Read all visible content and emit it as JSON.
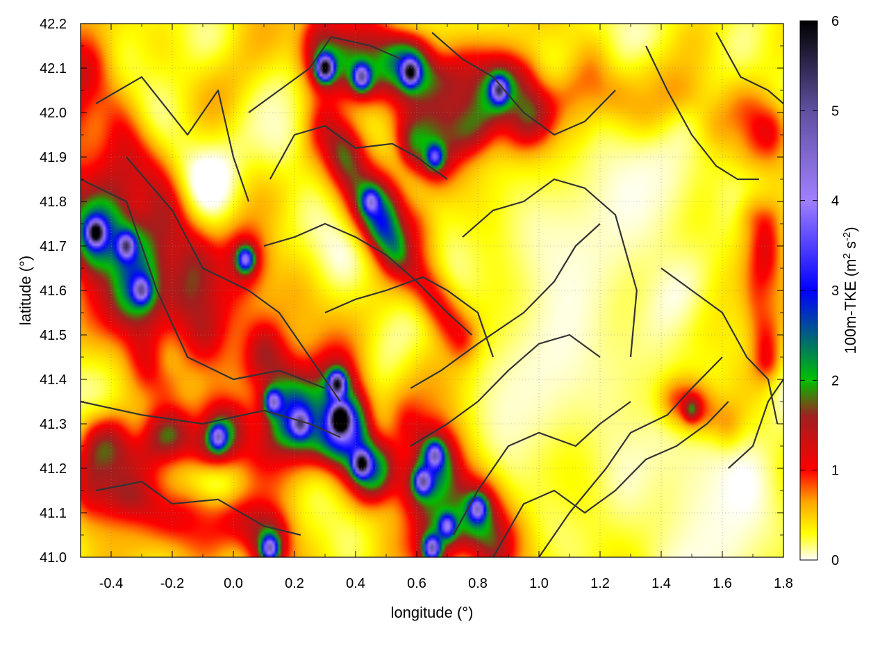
{
  "chart_data": {
    "type": "heatmap",
    "title": "",
    "xlabel": "longitude (°)",
    "ylabel": "latitude (°)",
    "xlim": [
      -0.5,
      1.8
    ],
    "ylim": [
      41.0,
      42.2
    ],
    "x_ticks": [
      "-0.4",
      "-0.2",
      "0.0",
      "0.2",
      "0.4",
      "0.6",
      "0.8",
      "1.0",
      "1.2",
      "1.4",
      "1.6",
      "1.8"
    ],
    "x_tick_values": [
      -0.4,
      -0.2,
      0.0,
      0.2,
      0.4,
      0.6,
      0.8,
      1.0,
      1.2,
      1.4,
      1.6,
      1.8
    ],
    "y_ticks": [
      "41.0",
      "41.1",
      "41.2",
      "41.3",
      "41.4",
      "41.5",
      "41.6",
      "41.7",
      "41.8",
      "41.9",
      "42.0",
      "42.1",
      "42.2"
    ],
    "y_tick_values": [
      41.0,
      41.1,
      41.2,
      41.3,
      41.4,
      41.5,
      41.6,
      41.7,
      41.8,
      41.9,
      42.0,
      42.1,
      42.2
    ],
    "colorbar": {
      "label_main": "100m-TKE (m",
      "label_sup1": "2",
      "label_mid": " s",
      "label_sup2": "-2",
      "label_end": ")",
      "range": [
        0,
        6
      ],
      "ticks": [
        "0",
        "1",
        "2",
        "3",
        "4",
        "5",
        "6"
      ],
      "tick_values": [
        0,
        1,
        2,
        3,
        4,
        5,
        6
      ],
      "stops": [
        {
          "v": 0.0,
          "color": "#ffffff"
        },
        {
          "v": 0.3,
          "color": "#ffff00"
        },
        {
          "v": 0.65,
          "color": "#ffa500"
        },
        {
          "v": 1.0,
          "color": "#ff0000"
        },
        {
          "v": 1.6,
          "color": "#a02020"
        },
        {
          "v": 2.0,
          "color": "#00c000"
        },
        {
          "v": 3.0,
          "color": "#0000ff"
        },
        {
          "v": 4.0,
          "color": "#a080ff"
        },
        {
          "v": 5.0,
          "color": "#6050a0"
        },
        {
          "v": 6.0,
          "color": "#000000"
        }
      ]
    },
    "field": {
      "description_free": true,
      "hotspots": [
        {
          "lon": -0.45,
          "lat": 41.73,
          "tke": 4.2
        },
        {
          "lon": -0.35,
          "lat": 41.7,
          "tke": 3.0
        },
        {
          "lon": -0.3,
          "lat": 41.6,
          "tke": 2.6
        },
        {
          "lon": 0.04,
          "lat": 41.67,
          "tke": 2.8
        },
        {
          "lon": 0.3,
          "lat": 42.1,
          "tke": 5.0
        },
        {
          "lon": 0.42,
          "lat": 42.08,
          "tke": 3.2
        },
        {
          "lon": 0.58,
          "lat": 42.09,
          "tke": 4.0
        },
        {
          "lon": 0.87,
          "lat": 42.05,
          "tke": 3.6
        },
        {
          "lon": 0.35,
          "lat": 41.31,
          "tke": 6.0
        },
        {
          "lon": 0.34,
          "lat": 41.39,
          "tke": 4.0
        },
        {
          "lon": 0.42,
          "lat": 41.21,
          "tke": 4.2
        },
        {
          "lon": 0.13,
          "lat": 41.35,
          "tke": 2.8
        },
        {
          "lon": 0.22,
          "lat": 41.3,
          "tke": 2.4
        },
        {
          "lon": 0.62,
          "lat": 41.17,
          "tke": 3.0
        },
        {
          "lon": 0.66,
          "lat": 41.23,
          "tke": 2.8
        },
        {
          "lon": 0.8,
          "lat": 41.11,
          "tke": 3.0
        },
        {
          "lon": 0.7,
          "lat": 41.07,
          "tke": 2.4
        },
        {
          "lon": -0.05,
          "lat": 41.27,
          "tke": 2.6
        },
        {
          "lon": 0.65,
          "lat": 41.02,
          "tke": 3.4
        },
        {
          "lon": 0.12,
          "lat": 41.02,
          "tke": 3.0
        },
        {
          "lon": 0.66,
          "lat": 41.9,
          "tke": 2.2
        },
        {
          "lon": 0.45,
          "lat": 41.8,
          "tke": 2.0
        },
        {
          "lon": 1.5,
          "lat": 41.33,
          "tke": 2.0
        }
      ],
      "ridges": [
        {
          "lon0": -0.5,
          "lat0": 42.05,
          "lon1": -0.1,
          "lat1": 41.55,
          "tke": 1.3,
          "w": 0.08
        },
        {
          "lon0": -0.5,
          "lat0": 41.8,
          "lon1": -0.25,
          "lat1": 41.45,
          "tke": 1.4,
          "w": 0.06
        },
        {
          "lon0": 0.3,
          "lat0": 41.95,
          "lon1": 0.55,
          "lat1": 41.72,
          "tke": 1.6,
          "w": 0.05
        },
        {
          "lon0": 0.5,
          "lat0": 41.75,
          "lon1": 0.75,
          "lat1": 41.5,
          "tke": 1.0,
          "w": 0.04
        },
        {
          "lon0": -0.45,
          "lat0": 41.25,
          "lon1": 0.4,
          "lat1": 41.3,
          "tke": 1.2,
          "w": 0.05
        },
        {
          "lon0": 0.1,
          "lat0": 41.45,
          "lon1": 0.45,
          "lat1": 41.2,
          "tke": 1.5,
          "w": 0.05
        },
        {
          "lon0": 0.3,
          "lat0": 42.15,
          "lon1": 0.95,
          "lat1": 42.05,
          "tke": 1.5,
          "w": 0.05
        },
        {
          "lon0": 0.6,
          "lat0": 41.95,
          "lon1": 1.1,
          "lat1": 42.0,
          "tke": 1.3,
          "w": 0.05
        },
        {
          "lon0": 1.2,
          "lat0": 42.05,
          "lon1": 1.75,
          "lat1": 41.95,
          "tke": 1.0,
          "w": 0.06
        },
        {
          "lon0": 1.72,
          "lat0": 41.75,
          "lon1": 1.75,
          "lat1": 41.45,
          "tke": 1.1,
          "w": 0.04
        },
        {
          "lon0": 0.55,
          "lat0": 41.25,
          "lon1": 0.85,
          "lat1": 41.05,
          "tke": 1.3,
          "w": 0.06
        },
        {
          "lon0": -0.45,
          "lat0": 41.15,
          "lon1": 0.1,
          "lat1": 41.05,
          "tke": 1.0,
          "w": 0.05
        },
        {
          "lon0": 1.45,
          "lat0": 41.35,
          "lon1": 1.6,
          "lat1": 41.3,
          "tke": 1.1,
          "w": 0.04
        }
      ],
      "calm_regions": [
        {
          "lon": 1.15,
          "lat": 41.7,
          "r": 0.3
        },
        {
          "lon": 1.0,
          "lat": 41.35,
          "r": 0.25
        },
        {
          "lon": 1.5,
          "lat": 41.15,
          "r": 0.25
        },
        {
          "lon": 1.4,
          "lat": 41.85,
          "r": 0.2
        },
        {
          "lon": 0.15,
          "lat": 41.95,
          "r": 0.12
        },
        {
          "lon": 1.6,
          "lat": 41.02,
          "r": 0.2
        }
      ]
    },
    "contours": [
      [
        [
          -0.5,
          41.85
        ],
        [
          -0.35,
          41.8
        ],
        [
          -0.25,
          41.6
        ],
        [
          -0.15,
          41.45
        ],
        [
          0.0,
          41.4
        ],
        [
          0.15,
          41.42
        ],
        [
          0.3,
          41.38
        ]
      ],
      [
        [
          -0.5,
          41.35
        ],
        [
          -0.3,
          41.32
        ],
        [
          -0.1,
          41.3
        ],
        [
          0.1,
          41.33
        ],
        [
          0.25,
          41.3
        ],
        [
          0.35,
          41.27
        ]
      ],
      [
        [
          -0.45,
          41.15
        ],
        [
          -0.3,
          41.17
        ],
        [
          -0.2,
          41.12
        ],
        [
          -0.05,
          41.13
        ],
        [
          0.1,
          41.07
        ],
        [
          0.22,
          41.05
        ]
      ],
      [
        [
          -0.45,
          42.02
        ],
        [
          -0.3,
          42.08
        ],
        [
          -0.15,
          41.95
        ],
        [
          -0.05,
          42.05
        ],
        [
          0.0,
          41.9
        ],
        [
          0.05,
          41.8
        ]
      ],
      [
        [
          -0.35,
          41.9
        ],
        [
          -0.2,
          41.78
        ],
        [
          -0.1,
          41.65
        ],
        [
          0.05,
          41.6
        ],
        [
          0.15,
          41.55
        ],
        [
          0.35,
          41.35
        ]
      ],
      [
        [
          0.05,
          42.0
        ],
        [
          0.15,
          42.05
        ],
        [
          0.25,
          42.1
        ],
        [
          0.32,
          42.17
        ],
        [
          0.45,
          42.15
        ],
        [
          0.55,
          42.12
        ]
      ],
      [
        [
          0.12,
          41.85
        ],
        [
          0.2,
          41.95
        ],
        [
          0.3,
          41.97
        ],
        [
          0.4,
          41.92
        ],
        [
          0.52,
          41.93
        ],
        [
          0.6,
          41.9
        ],
        [
          0.7,
          41.85
        ]
      ],
      [
        [
          0.1,
          41.7
        ],
        [
          0.2,
          41.72
        ],
        [
          0.3,
          41.75
        ],
        [
          0.4,
          41.72
        ],
        [
          0.5,
          41.68
        ],
        [
          0.6,
          41.62
        ],
        [
          0.7,
          41.55
        ],
        [
          0.78,
          41.5
        ]
      ],
      [
        [
          0.3,
          41.55
        ],
        [
          0.4,
          41.58
        ],
        [
          0.5,
          41.6
        ],
        [
          0.62,
          41.63
        ],
        [
          0.7,
          41.6
        ],
        [
          0.8,
          41.55
        ],
        [
          0.85,
          41.45
        ]
      ],
      [
        [
          0.58,
          41.38
        ],
        [
          0.68,
          41.42
        ],
        [
          0.8,
          41.48
        ],
        [
          0.95,
          41.55
        ],
        [
          1.05,
          41.62
        ],
        [
          1.12,
          41.7
        ],
        [
          1.2,
          41.75
        ]
      ],
      [
        [
          0.75,
          41.72
        ],
        [
          0.85,
          41.78
        ],
        [
          0.95,
          41.8
        ],
        [
          1.05,
          41.85
        ],
        [
          1.15,
          41.83
        ],
        [
          1.25,
          41.77
        ],
        [
          1.32,
          41.6
        ],
        [
          1.3,
          41.45
        ]
      ],
      [
        [
          0.58,
          41.25
        ],
        [
          0.7,
          41.3
        ],
        [
          0.8,
          41.35
        ],
        [
          0.9,
          41.42
        ],
        [
          1.0,
          41.48
        ],
        [
          1.1,
          41.5
        ],
        [
          1.2,
          41.45
        ]
      ],
      [
        [
          0.72,
          41.05
        ],
        [
          0.8,
          41.15
        ],
        [
          0.9,
          41.25
        ],
        [
          1.0,
          41.28
        ],
        [
          1.12,
          41.25
        ],
        [
          1.2,
          41.3
        ],
        [
          1.3,
          41.35
        ]
      ],
      [
        [
          0.85,
          41.0
        ],
        [
          0.95,
          41.12
        ],
        [
          1.05,
          41.15
        ],
        [
          1.15,
          41.1
        ],
        [
          1.25,
          41.15
        ],
        [
          1.35,
          41.22
        ],
        [
          1.45,
          41.25
        ],
        [
          1.55,
          41.3
        ],
        [
          1.62,
          41.35
        ]
      ],
      [
        [
          1.0,
          41.0
        ],
        [
          1.1,
          41.1
        ],
        [
          1.22,
          41.2
        ],
        [
          1.3,
          41.28
        ],
        [
          1.42,
          41.32
        ],
        [
          1.5,
          41.38
        ],
        [
          1.6,
          41.45
        ]
      ],
      [
        [
          1.35,
          42.15
        ],
        [
          1.42,
          42.05
        ],
        [
          1.5,
          41.95
        ],
        [
          1.58,
          41.88
        ],
        [
          1.65,
          41.85
        ],
        [
          1.72,
          41.85
        ]
      ],
      [
        [
          1.4,
          41.65
        ],
        [
          1.5,
          41.6
        ],
        [
          1.6,
          41.55
        ],
        [
          1.68,
          41.45
        ],
        [
          1.75,
          41.4
        ],
        [
          1.78,
          41.3
        ]
      ],
      [
        [
          0.65,
          42.18
        ],
        [
          0.75,
          42.12
        ],
        [
          0.85,
          42.08
        ],
        [
          0.95,
          42.0
        ],
        [
          1.05,
          41.95
        ],
        [
          1.15,
          41.98
        ],
        [
          1.25,
          42.05
        ]
      ],
      [
        [
          1.58,
          42.18
        ],
        [
          1.66,
          42.08
        ],
        [
          1.75,
          42.05
        ],
        [
          1.8,
          42.02
        ]
      ],
      [
        [
          1.62,
          41.2
        ],
        [
          1.7,
          41.25
        ],
        [
          1.75,
          41.35
        ],
        [
          1.8,
          41.4
        ]
      ]
    ]
  }
}
